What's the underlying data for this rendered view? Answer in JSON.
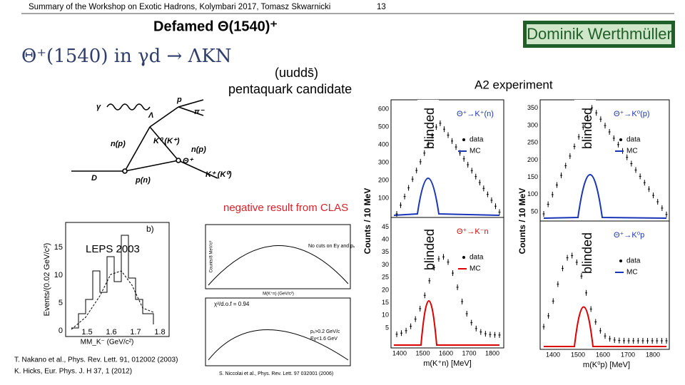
{
  "header": {
    "summary": "Summary of the Workshop on Exotic Hadrons, Kolymbari 2017, Tomasz Skwarnicki",
    "page": "13"
  },
  "title": "Defamed Θ(1540)⁺",
  "author": "Dominik Werthmüller",
  "reaction": "Θ⁺(1540) in γd → ΛKN",
  "pentaquark": {
    "quarks": "(uudds̄)",
    "label": "pentaquark candidate"
  },
  "diagram": {
    "labels": [
      "γ",
      "p",
      "Λ",
      "π⁻",
      "n(p)",
      "K⁰ (K⁺)",
      "n(p)",
      "Θ⁺",
      "D",
      "p(n)",
      "K⁺ (K⁰)"
    ]
  },
  "clas": {
    "note": "negative result from CLAS",
    "top_text": "No cuts on Eγ and pₓ",
    "fit": "χ²/d.o.f = 0.94",
    "cuts": [
      "pₓ>0.2 GeV/c",
      "Eγ<1.6 GeV"
    ],
    "ylabel": "Counts/8 MeV/c²",
    "xlabel": "M(K⁺n) (GeV/c²)"
  },
  "leps": {
    "title": "LEPS 2003",
    "panel": "b)",
    "ylabel": "Events/(0.02 GeV/c²)",
    "xlabel": "MM_K⁻ (GeV/c²)",
    "yticks": [
      "0",
      "5",
      "10",
      "15"
    ],
    "xticks": [
      "1.5",
      "1.6",
      "1.7",
      "1.8"
    ]
  },
  "references": [
    "T. Nakano et al., Phys. Rev. Lett. 91, 012002 (2003)",
    "K. Hicks, Eur. Phys. J. H 37, 1 (2012)",
    "S. Niccolai et al., Phys. Rev. Lett. 97 032001 (2006)"
  ],
  "a2": {
    "title": "A2 experiment",
    "blinded": [
      "blinded",
      "blinded",
      "blinded",
      "blinded"
    ],
    "ylabel": "Counts / 10 MeV",
    "panels": [
      {
        "label": "Θ⁺→K⁺(n)",
        "legend": [
          "data",
          "MC"
        ]
      },
      {
        "label": "Θ⁺→K⁰(p)",
        "legend": [
          "data",
          "MC"
        ]
      },
      {
        "label": "Θ⁺→K⁻n",
        "legend": [
          "data",
          "MC"
        ]
      },
      {
        "label": "Θ⁺→K⁰p",
        "legend": [
          "data",
          "MC"
        ]
      }
    ],
    "xlabels": [
      "m(K⁺n) [MeV]",
      "m(K⁰p) [MeV]"
    ],
    "yticks_left_top": [
      "100",
      "200",
      "300",
      "400",
      "500",
      "600"
    ],
    "yticks_left_bottom": [
      "5",
      "10",
      "15",
      "20",
      "25",
      "30",
      "35",
      "40",
      "45"
    ],
    "yticks_right_top": [
      "50",
      "100",
      "150",
      "200",
      "250",
      "300",
      "350"
    ],
    "xticks_left": [
      "1400",
      "1500",
      "1600",
      "1700",
      "1800"
    ],
    "xticks_right": [
      "1400",
      "1500",
      "1600",
      "1700",
      "1800"
    ]
  }
}
